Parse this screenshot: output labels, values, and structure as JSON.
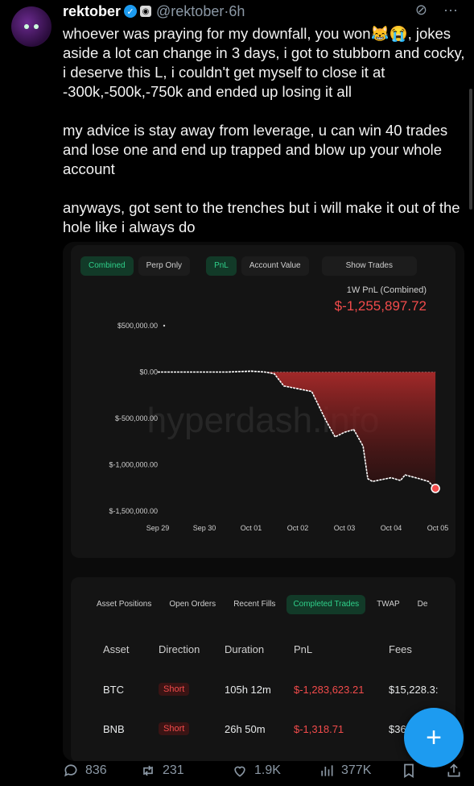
{
  "user": {
    "name": "rektober",
    "handle": "@rektober",
    "time": "6h"
  },
  "tweet": {
    "para1": "whoever was praying for my downfall, you won😹😭, jokes aside a lot can change in 3 days, i got to stubborn and cocky, i deserve this L, i couldn't get myself to close it at -300k,-500k,-750k and ended up losing it all",
    "para2": "my advice is stay away from leverage, u can win 40 trades and lose one and end up trapped and blow up your whole account",
    "para3": "anyways, got sent to the trenches but i will make it out of the hole like i always do"
  },
  "chart_tabs": [
    "Combined",
    "Perp Only",
    "PnL",
    "Account Value",
    "Show Trades"
  ],
  "pnl_title": "1W PnL (Combined)",
  "pnl_value": "$-1,255,897.72",
  "watermark": "hyperdash.info",
  "chart_data": {
    "type": "area",
    "title": "1W PnL (Combined)",
    "xlabel": "",
    "ylabel": "",
    "x_ticks": [
      "Sep 29",
      "Sep 30",
      "Oct 01",
      "Oct 02",
      "Oct 03",
      "Oct 04",
      "Oct 05"
    ],
    "y_ticks": [
      "$500,000.00",
      "$0.00",
      "$-500,000.00",
      "$-1,000,000.00",
      "$-1,500,000.00"
    ],
    "y_tick_values": [
      500000,
      0,
      -500000,
      -1000000,
      -1500000
    ],
    "ylim": [
      -1500000,
      500000
    ],
    "series": [
      {
        "x": [
          0,
          0.5,
          1,
          1.5,
          2,
          2.3,
          2.5,
          2.7,
          3.0,
          3.3,
          3.6,
          3.8,
          4.0,
          4.2,
          4.4,
          4.5,
          4.6,
          4.8,
          5.0,
          5.2,
          5.3,
          5.6,
          5.8,
          5.95
        ],
        "values": [
          0,
          0,
          0,
          0,
          10000,
          0,
          -20000,
          -150000,
          -180000,
          -210000,
          -520000,
          -700000,
          -650000,
          -620000,
          -800000,
          -1150000,
          -1180000,
          -1160000,
          -1140000,
          -1170000,
          -1110000,
          -1150000,
          -1180000,
          -1255897.72
        ]
      }
    ],
    "grid": false,
    "legend": "none"
  },
  "table_tabs": [
    "Asset Positions",
    "Open Orders",
    "Recent Fills",
    "Completed Trades",
    "TWAP",
    "De"
  ],
  "table": {
    "headers": [
      "Asset",
      "Direction",
      "Duration",
      "PnL",
      "Fees"
    ],
    "rows": [
      {
        "asset": "BTC",
        "direction": "Short",
        "duration": "105h 12m",
        "pnl": "$-1,283,623.21",
        "fees": "$15,228.3:"
      },
      {
        "asset": "BNB",
        "direction": "Short",
        "duration": "26h 50m",
        "pnl": "$-1,318.71",
        "fees": "$367.76"
      }
    ]
  },
  "actions": {
    "replies": "836",
    "reposts": "231",
    "likes": "1.9K",
    "views": "377K"
  },
  "colors": {
    "accent_green": "#2fd08a",
    "loss_red": "#f24b4b",
    "twitter_blue": "#1d9bf0"
  }
}
